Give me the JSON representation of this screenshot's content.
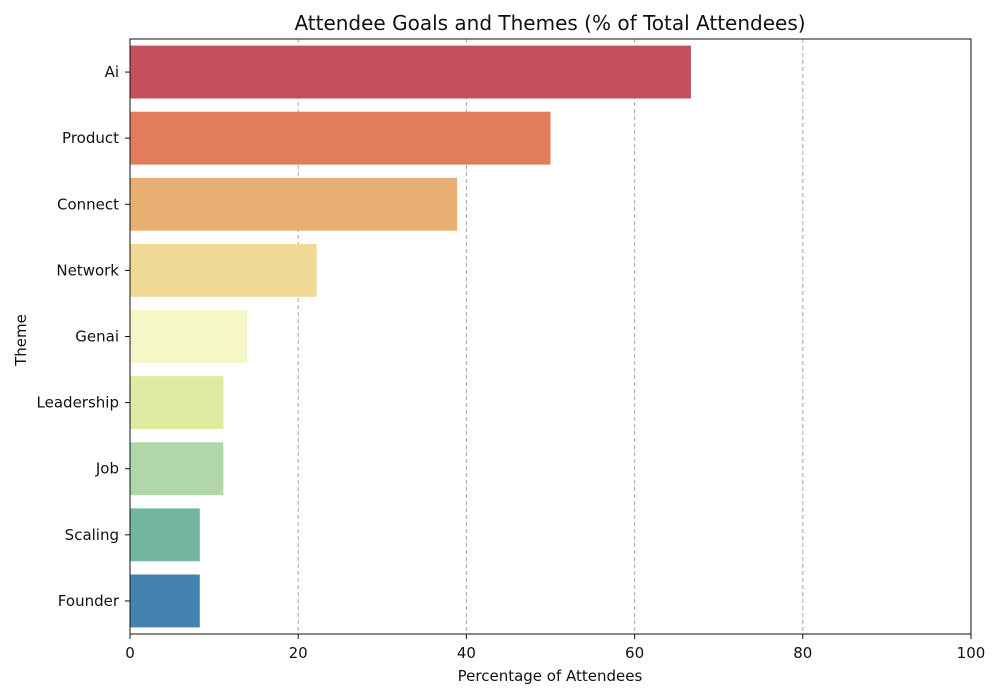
{
  "chart_data": {
    "type": "bar",
    "orientation": "horizontal",
    "title": "Attendee Goals and Themes (% of Total Attendees)",
    "xlabel": "Percentage of Attendees",
    "ylabel": "Theme",
    "xlim": [
      0,
      100
    ],
    "x_ticks": [
      0,
      20,
      40,
      60,
      80,
      100
    ],
    "grid": "x-axis dashed",
    "categories": [
      "Ai",
      "Product",
      "Connect",
      "Network",
      "Genai",
      "Leadership",
      "Job",
      "Scaling",
      "Founder"
    ],
    "values": [
      66.7,
      50.0,
      38.9,
      22.2,
      13.9,
      11.1,
      11.1,
      8.3,
      8.3
    ],
    "colors": [
      "#c4505e",
      "#e17d5c",
      "#e9ae72",
      "#f0d896",
      "#f6f7c6",
      "#dfe9a1",
      "#b1d6a8",
      "#72b69f",
      "#4483b1"
    ]
  }
}
